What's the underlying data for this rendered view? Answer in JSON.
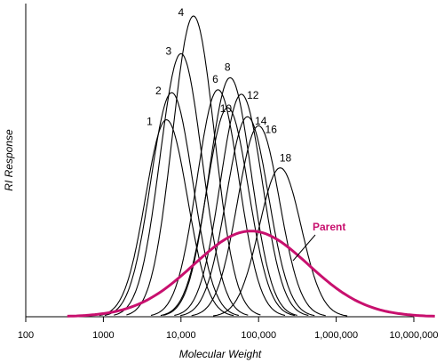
{
  "chart_data": {
    "type": "line",
    "xlabel": "Molecular Weight",
    "ylabel": "RI Response",
    "x_scale": "log",
    "xlim": [
      100,
      10000000
    ],
    "ylim": [
      0,
      1
    ],
    "x_ticks": [
      {
        "value": 100,
        "label": "100"
      },
      {
        "value": 1000,
        "label": "1000"
      },
      {
        "value": 10000,
        "label": "10,000"
      },
      {
        "value": 100000,
        "label": "100,000"
      },
      {
        "value": 1000000,
        "label": "1,000,000"
      },
      {
        "value": 10000000,
        "label": "10,000,000"
      }
    ],
    "grid": false,
    "series": [
      {
        "name": "1",
        "peak_mw": 6500,
        "peak_height": 0.655
      },
      {
        "name": "2",
        "peak_mw": 7600,
        "peak_height": 0.745
      },
      {
        "name": "3",
        "peak_mw": 10000,
        "peak_height": 0.875
      },
      {
        "name": "4",
        "peak_mw": 14500,
        "peak_height": 1.0
      },
      {
        "name": "6",
        "peak_mw": 30000,
        "peak_height": 0.755
      },
      {
        "name": "8",
        "peak_mw": 43000,
        "peak_height": 0.795
      },
      {
        "name": "10",
        "peak_mw": 40000,
        "peak_height": 0.695
      },
      {
        "name": "12",
        "peak_mw": 60000,
        "peak_height": 0.74
      },
      {
        "name": "14",
        "peak_mw": 72000,
        "peak_height": 0.665
      },
      {
        "name": "16",
        "peak_mw": 100000,
        "peak_height": 0.635
      },
      {
        "name": "18",
        "peak_mw": 190000,
        "peak_height": 0.495
      },
      {
        "name": "Parent",
        "peak_mw": 80000,
        "peak_height": 0.285,
        "color": "#c8106e"
      }
    ],
    "line_color": "#000000",
    "parent_color": "#c8106e"
  }
}
